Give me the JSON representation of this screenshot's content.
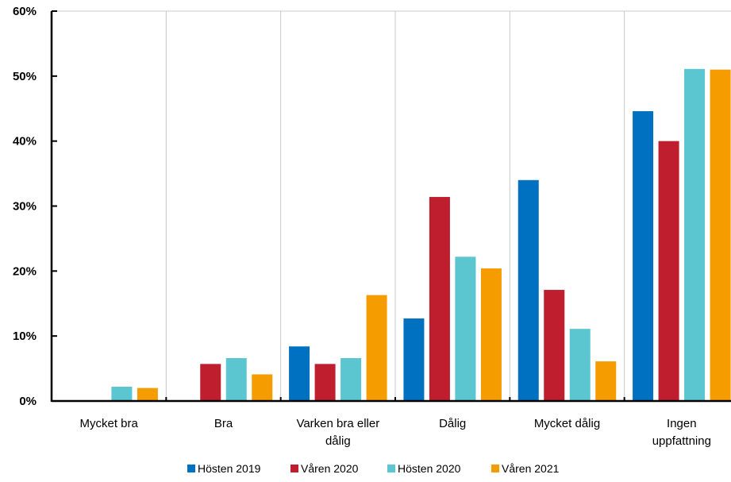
{
  "chart_data": {
    "type": "bar",
    "title": "",
    "xlabel": "",
    "ylabel": "",
    "ylim": [
      0,
      60
    ],
    "ytick_values": [
      0,
      10,
      20,
      30,
      40,
      50,
      60
    ],
    "ytick_labels": [
      "0%",
      "10%",
      "20%",
      "30%",
      "40%",
      "50%",
      "60%"
    ],
    "grid": "vertical",
    "legend_position": "bottom",
    "categories": [
      [
        "Mycket bra"
      ],
      [
        "Bra"
      ],
      [
        "Varken bra eller",
        "dålig"
      ],
      [
        "Dålig"
      ],
      [
        "Mycket dålig"
      ],
      [
        "Ingen",
        "uppfattning"
      ]
    ],
    "series": [
      {
        "name": "Hösten 2019",
        "color": "#0070C0",
        "values": [
          0,
          0,
          8.4,
          12.7,
          34.0,
          44.6
        ]
      },
      {
        "name": "Våren 2020",
        "color": "#BE1E2D",
        "values": [
          0,
          5.7,
          5.7,
          31.4,
          17.1,
          40.0
        ]
      },
      {
        "name": "Hösten 2020",
        "color": "#5BC5D0",
        "values": [
          2.2,
          6.6,
          6.6,
          22.2,
          11.1,
          51.1
        ]
      },
      {
        "name": "Våren 2021",
        "color": "#F59C00",
        "values": [
          2.0,
          4.1,
          16.3,
          20.4,
          6.1,
          51.0
        ]
      }
    ]
  }
}
